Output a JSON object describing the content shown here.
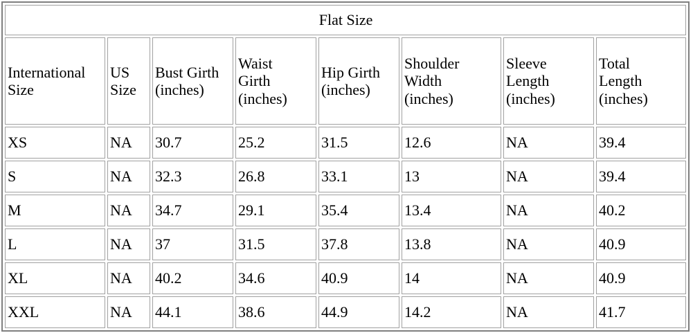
{
  "chart_data": {
    "type": "table",
    "title": "Flat Size",
    "columns": [
      "International Size",
      "US Size",
      "Bust Girth (inches)",
      "Waist Girth (inches)",
      "Hip Girth (inches)",
      "Shoulder Width (inches)",
      "Sleeve Length (inches)",
      "Total Length (inches)"
    ],
    "rows": [
      [
        "XS",
        "NA",
        "30.7",
        "25.2",
        "31.5",
        "12.6",
        "NA",
        "39.4"
      ],
      [
        "S",
        "NA",
        "32.3",
        "26.8",
        "33.1",
        "13",
        "NA",
        "39.4"
      ],
      [
        "M",
        "NA",
        "34.7",
        "29.1",
        "35.4",
        "13.4",
        "NA",
        "40.2"
      ],
      [
        "L",
        "NA",
        "37",
        "31.5",
        "37.8",
        "13.8",
        "NA",
        "40.9"
      ],
      [
        "XL",
        "NA",
        "40.2",
        "34.6",
        "40.9",
        "14",
        "NA",
        "40.9"
      ],
      [
        "XXL",
        "NA",
        "44.1",
        "38.6",
        "44.9",
        "14.2",
        "NA",
        "41.7"
      ]
    ]
  },
  "colors": {
    "background": "#ffffff",
    "text": "#000000",
    "outer_border": "#7f7f7f",
    "cell_border": "#a0a0a0"
  }
}
